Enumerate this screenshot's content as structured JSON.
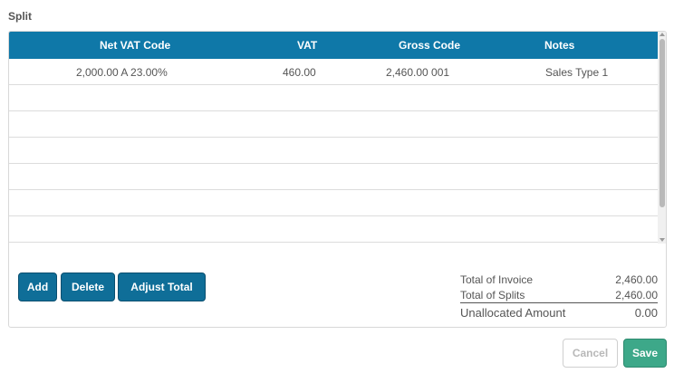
{
  "section": {
    "title": "Split"
  },
  "grid": {
    "columns": [
      "Net VAT Code",
      "VAT",
      "Gross Code",
      "Notes"
    ],
    "rows": [
      {
        "net_vat_code": "2,000.00 A 23.00%",
        "vat": "460.00",
        "gross_code": "2,460.00 001",
        "notes": "Sales Type 1"
      },
      {
        "net_vat_code": "",
        "vat": "",
        "gross_code": "",
        "notes": ""
      },
      {
        "net_vat_code": "",
        "vat": "",
        "gross_code": "",
        "notes": ""
      },
      {
        "net_vat_code": "",
        "vat": "",
        "gross_code": "",
        "notes": ""
      },
      {
        "net_vat_code": "",
        "vat": "",
        "gross_code": "",
        "notes": ""
      },
      {
        "net_vat_code": "",
        "vat": "",
        "gross_code": "",
        "notes": ""
      },
      {
        "net_vat_code": "",
        "vat": "",
        "gross_code": "",
        "notes": ""
      }
    ]
  },
  "actions": {
    "add": "Add",
    "delete": "Delete",
    "adjust_total": "Adjust Total"
  },
  "totals": {
    "invoice_label": "Total of Invoice",
    "invoice_value": "2,460.00",
    "splits_label": "Total of Splits",
    "splits_value": "2,460.00",
    "unallocated_label": "Unallocated Amount",
    "unallocated_value": "0.00"
  },
  "footer": {
    "cancel": "Cancel",
    "save": "Save"
  },
  "colors": {
    "header": "#0f78a8",
    "primary_button": "#0f6e98",
    "save_button": "#3da889"
  }
}
